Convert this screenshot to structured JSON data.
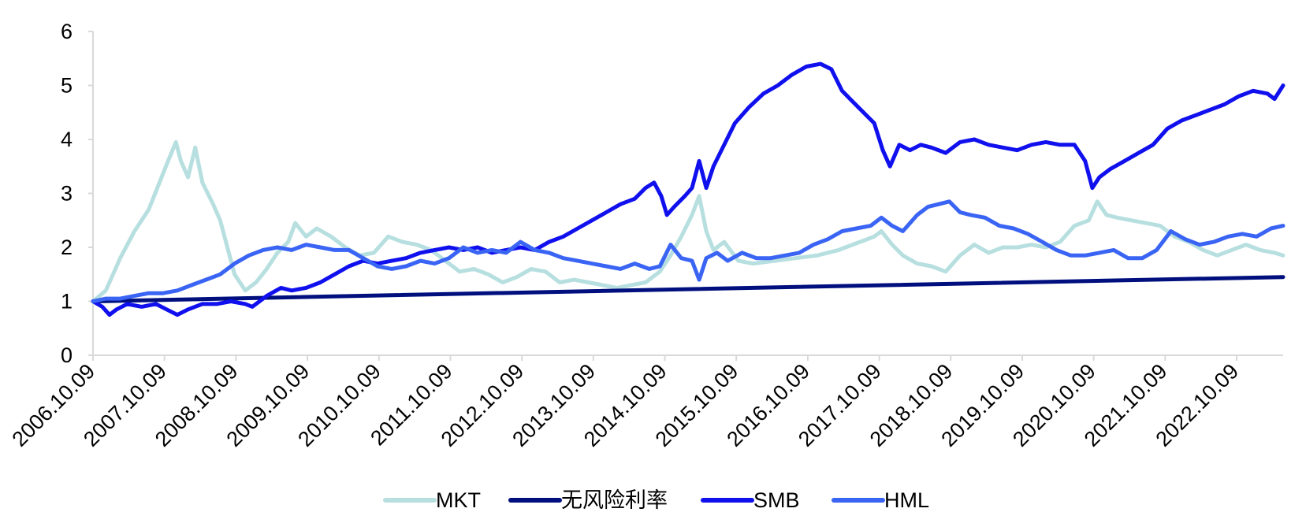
{
  "chart_data": {
    "type": "line",
    "title": "",
    "xlabel": "",
    "ylabel": "",
    "ylim": [
      0,
      6
    ],
    "yticks": [
      0,
      1,
      2,
      3,
      4,
      5,
      6
    ],
    "x_tick_labels": [
      "2006.10.09",
      "2007.10.09",
      "2008.10.09",
      "2009.10.09",
      "2010.10.09",
      "2011.10.09",
      "2012.10.09",
      "2013.10.09",
      "2014.10.09",
      "2015.10.09",
      "2016.10.09",
      "2017.10.09",
      "2018.10.09",
      "2019.10.09",
      "2020.10.09",
      "2021.10.09",
      "2022.10.09"
    ],
    "x_start": 2006.77,
    "x_end": 2023.42,
    "grid": false,
    "legend_position": "bottom",
    "series": [
      {
        "name": "MKT",
        "color": "#b7dfe0",
        "width": 5,
        "points": [
          [
            2006.77,
            1.0
          ],
          [
            2006.95,
            1.2
          ],
          [
            2007.15,
            1.8
          ],
          [
            2007.35,
            2.3
          ],
          [
            2007.55,
            2.7
          ],
          [
            2007.7,
            3.2
          ],
          [
            2007.82,
            3.6
          ],
          [
            2007.93,
            3.95
          ],
          [
            2008.0,
            3.6
          ],
          [
            2008.1,
            3.3
          ],
          [
            2008.2,
            3.85
          ],
          [
            2008.3,
            3.2
          ],
          [
            2008.45,
            2.8
          ],
          [
            2008.55,
            2.5
          ],
          [
            2008.65,
            2.0
          ],
          [
            2008.75,
            1.5
          ],
          [
            2008.9,
            1.2
          ],
          [
            2009.05,
            1.35
          ],
          [
            2009.2,
            1.6
          ],
          [
            2009.35,
            1.9
          ],
          [
            2009.5,
            2.1
          ],
          [
            2009.6,
            2.45
          ],
          [
            2009.75,
            2.2
          ],
          [
            2009.9,
            2.35
          ],
          [
            2010.1,
            2.2
          ],
          [
            2010.3,
            2.0
          ],
          [
            2010.5,
            1.85
          ],
          [
            2010.7,
            1.9
          ],
          [
            2010.9,
            2.2
          ],
          [
            2011.1,
            2.1
          ],
          [
            2011.3,
            2.05
          ],
          [
            2011.5,
            1.95
          ],
          [
            2011.7,
            1.75
          ],
          [
            2011.9,
            1.55
          ],
          [
            2012.1,
            1.6
          ],
          [
            2012.3,
            1.5
          ],
          [
            2012.5,
            1.35
          ],
          [
            2012.7,
            1.45
          ],
          [
            2012.9,
            1.6
          ],
          [
            2013.1,
            1.55
          ],
          [
            2013.3,
            1.35
          ],
          [
            2013.5,
            1.4
          ],
          [
            2013.7,
            1.35
          ],
          [
            2013.9,
            1.3
          ],
          [
            2014.1,
            1.25
          ],
          [
            2014.3,
            1.3
          ],
          [
            2014.5,
            1.35
          ],
          [
            2014.7,
            1.55
          ],
          [
            2014.85,
            1.85
          ],
          [
            2015.0,
            2.2
          ],
          [
            2015.15,
            2.6
          ],
          [
            2015.25,
            2.95
          ],
          [
            2015.35,
            2.3
          ],
          [
            2015.45,
            1.95
          ],
          [
            2015.6,
            2.1
          ],
          [
            2015.8,
            1.75
          ],
          [
            2016.0,
            1.7
          ],
          [
            2016.3,
            1.75
          ],
          [
            2016.6,
            1.8
          ],
          [
            2016.9,
            1.85
          ],
          [
            2017.2,
            1.95
          ],
          [
            2017.5,
            2.1
          ],
          [
            2017.7,
            2.2
          ],
          [
            2017.8,
            2.3
          ],
          [
            2017.95,
            2.05
          ],
          [
            2018.1,
            1.85
          ],
          [
            2018.3,
            1.7
          ],
          [
            2018.5,
            1.65
          ],
          [
            2018.7,
            1.55
          ],
          [
            2018.9,
            1.85
          ],
          [
            2019.1,
            2.05
          ],
          [
            2019.3,
            1.9
          ],
          [
            2019.5,
            2.0
          ],
          [
            2019.7,
            2.0
          ],
          [
            2019.9,
            2.05
          ],
          [
            2020.1,
            2.0
          ],
          [
            2020.3,
            2.1
          ],
          [
            2020.5,
            2.4
          ],
          [
            2020.7,
            2.5
          ],
          [
            2020.82,
            2.85
          ],
          [
            2020.95,
            2.6
          ],
          [
            2021.1,
            2.55
          ],
          [
            2021.3,
            2.5
          ],
          [
            2021.5,
            2.45
          ],
          [
            2021.7,
            2.4
          ],
          [
            2021.9,
            2.2
          ],
          [
            2022.1,
            2.1
          ],
          [
            2022.3,
            1.95
          ],
          [
            2022.5,
            1.85
          ],
          [
            2022.7,
            1.95
          ],
          [
            2022.9,
            2.05
          ],
          [
            2023.1,
            1.95
          ],
          [
            2023.3,
            1.9
          ],
          [
            2023.42,
            1.85
          ]
        ]
      },
      {
        "name": "无风险利率",
        "color": "#000f7e",
        "width": 5,
        "points": [
          [
            2006.77,
            1.0
          ],
          [
            2023.42,
            1.45
          ]
        ]
      },
      {
        "name": "SMB",
        "color": "#1010ee",
        "width": 5,
        "points": [
          [
            2006.77,
            1.0
          ],
          [
            2006.9,
            0.9
          ],
          [
            2007.0,
            0.75
          ],
          [
            2007.1,
            0.85
          ],
          [
            2007.25,
            0.95
          ],
          [
            2007.45,
            0.9
          ],
          [
            2007.65,
            0.95
          ],
          [
            2007.8,
            0.85
          ],
          [
            2007.95,
            0.75
          ],
          [
            2008.1,
            0.85
          ],
          [
            2008.3,
            0.95
          ],
          [
            2008.5,
            0.95
          ],
          [
            2008.7,
            1.0
          ],
          [
            2008.9,
            0.95
          ],
          [
            2009.0,
            0.9
          ],
          [
            2009.2,
            1.1
          ],
          [
            2009.4,
            1.25
          ],
          [
            2009.55,
            1.2
          ],
          [
            2009.75,
            1.25
          ],
          [
            2009.95,
            1.35
          ],
          [
            2010.15,
            1.5
          ],
          [
            2010.35,
            1.65
          ],
          [
            2010.55,
            1.75
          ],
          [
            2010.75,
            1.7
          ],
          [
            2010.95,
            1.75
          ],
          [
            2011.15,
            1.8
          ],
          [
            2011.35,
            1.9
          ],
          [
            2011.55,
            1.95
          ],
          [
            2011.75,
            2.0
          ],
          [
            2011.95,
            1.95
          ],
          [
            2012.15,
            2.0
          ],
          [
            2012.35,
            1.9
          ],
          [
            2012.55,
            1.95
          ],
          [
            2012.75,
            2.0
          ],
          [
            2012.95,
            1.95
          ],
          [
            2013.15,
            2.1
          ],
          [
            2013.35,
            2.2
          ],
          [
            2013.55,
            2.35
          ],
          [
            2013.75,
            2.5
          ],
          [
            2013.95,
            2.65
          ],
          [
            2014.15,
            2.8
          ],
          [
            2014.35,
            2.9
          ],
          [
            2014.5,
            3.1
          ],
          [
            2014.62,
            3.2
          ],
          [
            2014.72,
            2.95
          ],
          [
            2014.8,
            2.6
          ],
          [
            2014.9,
            2.75
          ],
          [
            2015.05,
            2.95
          ],
          [
            2015.15,
            3.1
          ],
          [
            2015.25,
            3.6
          ],
          [
            2015.35,
            3.1
          ],
          [
            2015.45,
            3.5
          ],
          [
            2015.6,
            3.9
          ],
          [
            2015.75,
            4.3
          ],
          [
            2015.95,
            4.6
          ],
          [
            2016.15,
            4.85
          ],
          [
            2016.35,
            5.0
          ],
          [
            2016.55,
            5.2
          ],
          [
            2016.75,
            5.35
          ],
          [
            2016.95,
            5.4
          ],
          [
            2017.1,
            5.3
          ],
          [
            2017.25,
            4.9
          ],
          [
            2017.4,
            4.7
          ],
          [
            2017.55,
            4.5
          ],
          [
            2017.7,
            4.3
          ],
          [
            2017.82,
            3.8
          ],
          [
            2017.92,
            3.5
          ],
          [
            2018.05,
            3.9
          ],
          [
            2018.2,
            3.8
          ],
          [
            2018.35,
            3.9
          ],
          [
            2018.5,
            3.85
          ],
          [
            2018.7,
            3.75
          ],
          [
            2018.9,
            3.95
          ],
          [
            2019.1,
            4.0
          ],
          [
            2019.3,
            3.9
          ],
          [
            2019.5,
            3.85
          ],
          [
            2019.7,
            3.8
          ],
          [
            2019.9,
            3.9
          ],
          [
            2020.1,
            3.95
          ],
          [
            2020.3,
            3.9
          ],
          [
            2020.5,
            3.9
          ],
          [
            2020.65,
            3.6
          ],
          [
            2020.75,
            3.1
          ],
          [
            2020.85,
            3.3
          ],
          [
            2021.0,
            3.45
          ],
          [
            2021.2,
            3.6
          ],
          [
            2021.4,
            3.75
          ],
          [
            2021.6,
            3.9
          ],
          [
            2021.8,
            4.2
          ],
          [
            2022.0,
            4.35
          ],
          [
            2022.2,
            4.45
          ],
          [
            2022.4,
            4.55
          ],
          [
            2022.6,
            4.65
          ],
          [
            2022.8,
            4.8
          ],
          [
            2023.0,
            4.9
          ],
          [
            2023.2,
            4.85
          ],
          [
            2023.3,
            4.75
          ],
          [
            2023.42,
            5.0
          ]
        ]
      },
      {
        "name": "HML",
        "color": "#3a64f4",
        "width": 5,
        "points": [
          [
            2006.77,
            1.0
          ],
          [
            2006.95,
            1.05
          ],
          [
            2007.15,
            1.05
          ],
          [
            2007.35,
            1.1
          ],
          [
            2007.55,
            1.15
          ],
          [
            2007.75,
            1.15
          ],
          [
            2007.95,
            1.2
          ],
          [
            2008.15,
            1.3
          ],
          [
            2008.35,
            1.4
          ],
          [
            2008.55,
            1.5
          ],
          [
            2008.75,
            1.7
          ],
          [
            2008.95,
            1.85
          ],
          [
            2009.15,
            1.95
          ],
          [
            2009.35,
            2.0
          ],
          [
            2009.55,
            1.95
          ],
          [
            2009.75,
            2.05
          ],
          [
            2009.95,
            2.0
          ],
          [
            2010.15,
            1.95
          ],
          [
            2010.35,
            1.95
          ],
          [
            2010.55,
            1.8
          ],
          [
            2010.75,
            1.65
          ],
          [
            2010.95,
            1.6
          ],
          [
            2011.15,
            1.65
          ],
          [
            2011.35,
            1.75
          ],
          [
            2011.55,
            1.7
          ],
          [
            2011.75,
            1.8
          ],
          [
            2011.95,
            2.0
          ],
          [
            2012.15,
            1.9
          ],
          [
            2012.35,
            1.95
          ],
          [
            2012.55,
            1.9
          ],
          [
            2012.75,
            2.1
          ],
          [
            2012.95,
            1.95
          ],
          [
            2013.15,
            1.9
          ],
          [
            2013.35,
            1.8
          ],
          [
            2013.55,
            1.75
          ],
          [
            2013.75,
            1.7
          ],
          [
            2013.95,
            1.65
          ],
          [
            2014.15,
            1.6
          ],
          [
            2014.35,
            1.7
          ],
          [
            2014.55,
            1.6
          ],
          [
            2014.7,
            1.65
          ],
          [
            2014.85,
            2.05
          ],
          [
            2015.0,
            1.8
          ],
          [
            2015.15,
            1.75
          ],
          [
            2015.25,
            1.4
          ],
          [
            2015.35,
            1.8
          ],
          [
            2015.5,
            1.9
          ],
          [
            2015.65,
            1.75
          ],
          [
            2015.85,
            1.9
          ],
          [
            2016.05,
            1.8
          ],
          [
            2016.25,
            1.8
          ],
          [
            2016.45,
            1.85
          ],
          [
            2016.65,
            1.9
          ],
          [
            2016.85,
            2.05
          ],
          [
            2017.05,
            2.15
          ],
          [
            2017.25,
            2.3
          ],
          [
            2017.45,
            2.35
          ],
          [
            2017.65,
            2.4
          ],
          [
            2017.8,
            2.55
          ],
          [
            2017.95,
            2.4
          ],
          [
            2018.1,
            2.3
          ],
          [
            2018.3,
            2.6
          ],
          [
            2018.45,
            2.75
          ],
          [
            2018.6,
            2.8
          ],
          [
            2018.75,
            2.85
          ],
          [
            2018.9,
            2.65
          ],
          [
            2019.05,
            2.6
          ],
          [
            2019.25,
            2.55
          ],
          [
            2019.45,
            2.4
          ],
          [
            2019.65,
            2.35
          ],
          [
            2019.85,
            2.25
          ],
          [
            2020.05,
            2.1
          ],
          [
            2020.25,
            1.95
          ],
          [
            2020.45,
            1.85
          ],
          [
            2020.65,
            1.85
          ],
          [
            2020.85,
            1.9
          ],
          [
            2021.05,
            1.95
          ],
          [
            2021.25,
            1.8
          ],
          [
            2021.45,
            1.8
          ],
          [
            2021.65,
            1.95
          ],
          [
            2021.85,
            2.3
          ],
          [
            2022.05,
            2.15
          ],
          [
            2022.25,
            2.05
          ],
          [
            2022.45,
            2.1
          ],
          [
            2022.65,
            2.2
          ],
          [
            2022.85,
            2.25
          ],
          [
            2023.05,
            2.2
          ],
          [
            2023.25,
            2.35
          ],
          [
            2023.42,
            2.4
          ]
        ]
      }
    ]
  }
}
